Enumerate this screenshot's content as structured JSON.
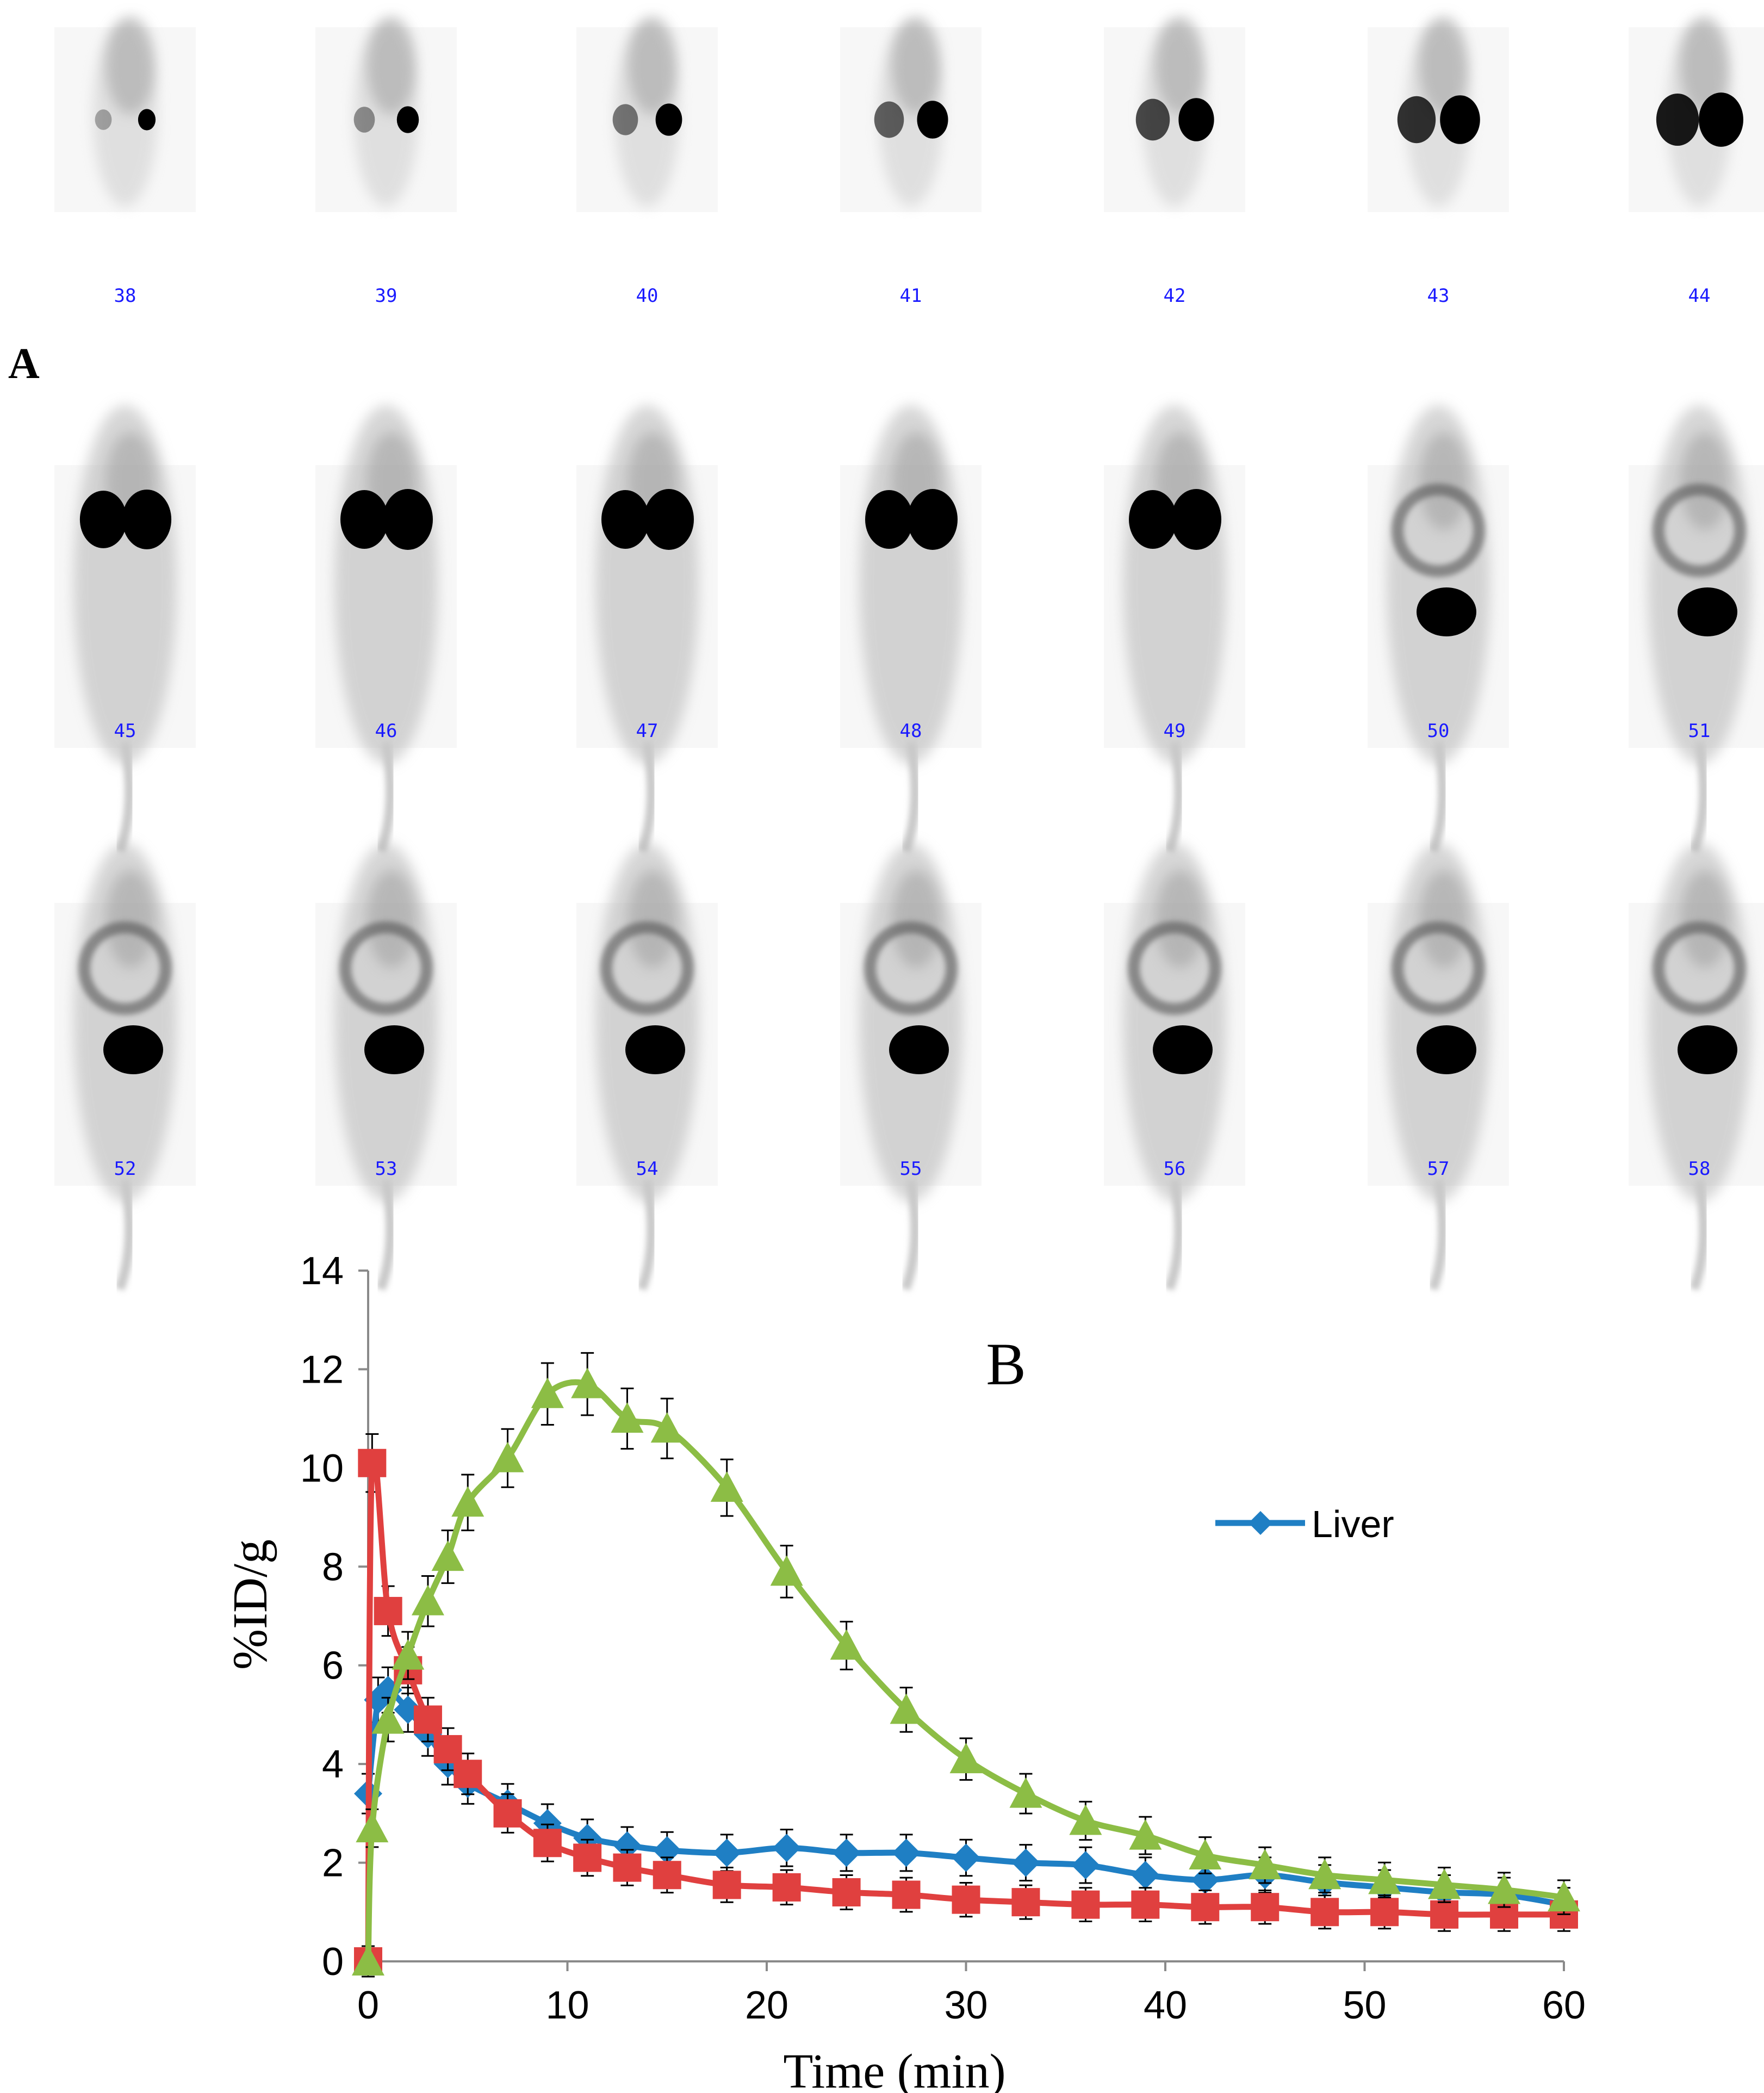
{
  "panel_a": {
    "label": "A",
    "frames": [
      "38",
      "39",
      "40",
      "41",
      "42",
      "43",
      "44",
      "45",
      "46",
      "47",
      "48",
      "49",
      "50",
      "51",
      "52",
      "53",
      "54",
      "55",
      "56",
      "57",
      "58"
    ]
  },
  "chart_data": {
    "type": "line",
    "panel_label": "B",
    "xlabel": "Time (min)",
    "ylabel": "%ID/g",
    "xlim": [
      0,
      60
    ],
    "ylim": [
      0,
      14
    ],
    "xticks": [
      "0",
      "10",
      "20",
      "30",
      "40",
      "50",
      "60"
    ],
    "yticks": [
      "0",
      "2",
      "4",
      "6",
      "8",
      "10",
      "12",
      "14"
    ],
    "legend": {
      "position": "right",
      "entries": [
        "Liver"
      ]
    },
    "series": [
      {
        "name": "Liver",
        "color": "#1f7fc4",
        "marker": "diamond",
        "x": [
          0,
          0.5,
          1,
          2,
          3,
          4,
          5,
          7,
          9,
          11,
          13,
          15,
          18,
          21,
          24,
          27,
          30,
          33,
          36,
          39,
          42,
          45,
          48,
          51,
          54,
          57,
          60
        ],
        "y": [
          3.4,
          5.3,
          5.5,
          5.1,
          4.6,
          4.0,
          3.6,
          3.2,
          2.8,
          2.5,
          2.35,
          2.25,
          2.2,
          2.3,
          2.2,
          2.2,
          2.1,
          2.0,
          1.95,
          1.75,
          1.65,
          1.75,
          1.6,
          1.5,
          1.4,
          1.35,
          1.15
        ]
      },
      {
        "name": "",
        "color": "#e0403f",
        "marker": "square",
        "x": [
          0,
          0.2,
          1,
          2,
          3,
          4,
          5,
          7,
          9,
          11,
          13,
          15,
          18,
          21,
          24,
          27,
          30,
          33,
          36,
          39,
          42,
          45,
          48,
          51,
          54,
          57,
          60
        ],
        "y": [
          0,
          10.1,
          7.1,
          5.9,
          4.9,
          4.3,
          3.8,
          3.0,
          2.4,
          2.1,
          1.9,
          1.75,
          1.55,
          1.5,
          1.4,
          1.35,
          1.25,
          1.2,
          1.15,
          1.15,
          1.1,
          1.1,
          1.0,
          1.0,
          0.95,
          0.95,
          0.95
        ]
      },
      {
        "name": "",
        "color": "#8cbd45",
        "marker": "triangle",
        "x": [
          0,
          0.2,
          1,
          2,
          3,
          4,
          5,
          7,
          9,
          11,
          13,
          15,
          18,
          21,
          24,
          27,
          30,
          33,
          36,
          39,
          42,
          45,
          48,
          51,
          54,
          57,
          60
        ],
        "y": [
          0,
          2.7,
          4.9,
          6.2,
          7.3,
          8.2,
          9.3,
          10.2,
          11.5,
          11.7,
          11.0,
          10.8,
          9.6,
          7.9,
          6.4,
          5.1,
          4.1,
          3.4,
          2.85,
          2.55,
          2.15,
          1.95,
          1.75,
          1.65,
          1.55,
          1.45,
          1.3
        ]
      }
    ]
  }
}
